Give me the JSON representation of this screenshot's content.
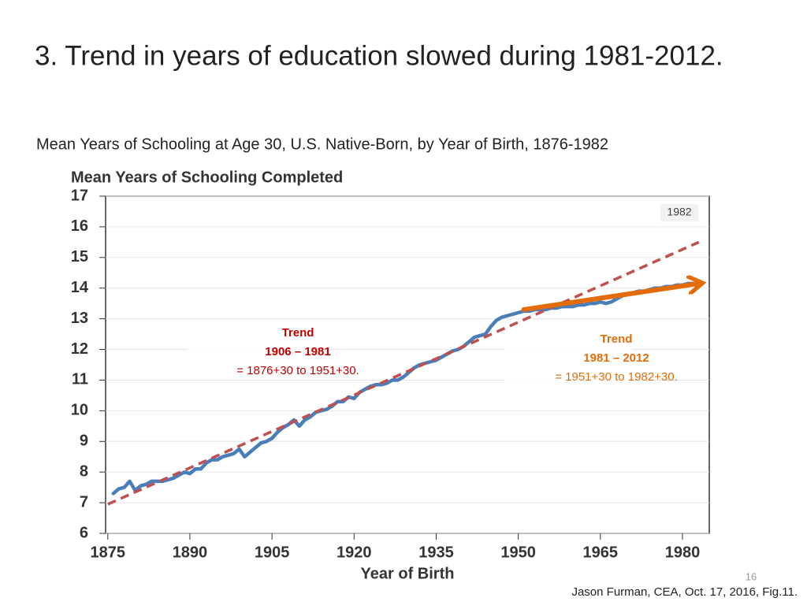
{
  "slide": {
    "title": "3. Trend in years of education slowed during 1981-2012.",
    "subtitle": "Mean Years of Schooling at Age 30, U.S. Native-Born, by Year of Birth, 1876-1982",
    "page_number": "16",
    "source": "Jason Furman, CEA, Oct. 17, 2016, Fig.11."
  },
  "chart_data": {
    "type": "line",
    "y_label": "Mean Years of Schooling Completed",
    "x_label": "Year of Birth",
    "xlim": [
      1874.6,
      1984.9
    ],
    "ylim": [
      6,
      17
    ],
    "xticks": [
      1875,
      1890,
      1905,
      1920,
      1935,
      1950,
      1965,
      1980
    ],
    "yticks": [
      6,
      7,
      8,
      9,
      10,
      11,
      12,
      13,
      14,
      15,
      16,
      17
    ],
    "grid": true,
    "series": [
      {
        "color": "#4a7ebb",
        "x": [
          1876,
          1877,
          1878,
          1879,
          1880,
          1881,
          1882,
          1883,
          1884,
          1885,
          1886,
          1887,
          1888,
          1889,
          1890,
          1891,
          1892,
          1893,
          1894,
          1895,
          1896,
          1897,
          1898,
          1899,
          1900,
          1901,
          1902,
          1903,
          1904,
          1905,
          1906,
          1907,
          1908,
          1909,
          1910,
          1911,
          1912,
          1913,
          1914,
          1915,
          1916,
          1917,
          1918,
          1919,
          1920,
          1921,
          1922,
          1923,
          1924,
          1925,
          1926,
          1927,
          1928,
          1929,
          1930,
          1931,
          1932,
          1933,
          1934,
          1935,
          1936,
          1937,
          1938,
          1939,
          1940,
          1941,
          1942,
          1943,
          1944,
          1945,
          1946,
          1947,
          1948,
          1949,
          1950,
          1951,
          1952,
          1953,
          1954,
          1955,
          1956,
          1957,
          1958,
          1959,
          1960,
          1961,
          1962,
          1963,
          1964,
          1965,
          1966,
          1967,
          1968,
          1969,
          1970,
          1971,
          1972,
          1973,
          1974,
          1975,
          1976,
          1977,
          1978,
          1979,
          1980,
          1981,
          1982
        ],
        "values": [
          7.3,
          7.45,
          7.5,
          7.7,
          7.4,
          7.55,
          7.6,
          7.7,
          7.7,
          7.7,
          7.75,
          7.8,
          7.9,
          8.0,
          7.95,
          8.1,
          8.1,
          8.3,
          8.4,
          8.4,
          8.5,
          8.55,
          8.6,
          8.75,
          8.5,
          8.65,
          8.8,
          8.95,
          9.0,
          9.1,
          9.3,
          9.45,
          9.55,
          9.7,
          9.5,
          9.7,
          9.8,
          9.95,
          10.0,
          10.05,
          10.15,
          10.3,
          10.3,
          10.45,
          10.4,
          10.6,
          10.7,
          10.8,
          10.85,
          10.85,
          10.9,
          11.0,
          11.0,
          11.1,
          11.25,
          11.4,
          11.5,
          11.55,
          11.6,
          11.65,
          11.75,
          11.85,
          11.95,
          12.0,
          12.1,
          12.25,
          12.4,
          12.45,
          12.5,
          12.75,
          12.95,
          13.05,
          13.1,
          13.15,
          13.2,
          13.25,
          13.25,
          13.3,
          13.3,
          13.3,
          13.35,
          13.35,
          13.4,
          13.4,
          13.4,
          13.45,
          13.45,
          13.5,
          13.5,
          13.55,
          13.5,
          13.55,
          13.65,
          13.75,
          13.8,
          13.85,
          13.9,
          13.9,
          13.95,
          14.0,
          14.0,
          14.05,
          14.05,
          14.1,
          14.1,
          14.15,
          14.15
        ]
      },
      {
        "color": "#c0504d",
        "dashed": true,
        "x": [
          1875,
          1983
        ],
        "values": [
          6.95,
          15.5
        ]
      },
      {
        "color": "#e36c09",
        "arrow": true,
        "x": [
          1951,
          1983
        ],
        "values": [
          13.3,
          14.15
        ]
      }
    ],
    "annotations": [
      {
        "lines": [
          "Trend",
          "1906 – 1981",
          "= 1876+30 to 1951+30."
        ],
        "color": "#c00000"
      },
      {
        "lines": [
          "Trend",
          "1981 – 2012",
          "= 1951+30 to 1982+30."
        ],
        "color": "#e36c09"
      },
      {
        "lines": [
          "1982"
        ],
        "color": "#404040"
      }
    ]
  }
}
